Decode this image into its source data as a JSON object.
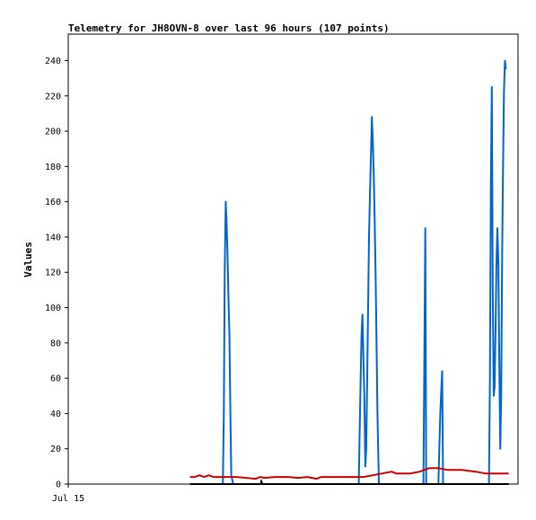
{
  "chart_data": {
    "type": "line",
    "title": "Telemetry for JH8OVN-8 over last 96 hours (107 points)",
    "xlabel": "",
    "ylabel": "Values",
    "xlim": [
      0,
      96
    ],
    "ylim": [
      0,
      255
    ],
    "yticks": [
      0,
      20,
      40,
      60,
      80,
      100,
      120,
      140,
      160,
      180,
      200,
      220,
      240
    ],
    "xticks": [
      {
        "x": 0,
        "label": "Jul 15"
      }
    ],
    "grid": false,
    "legend": "none",
    "series": [
      {
        "color": "#0066cc",
        "points": [
          [
            33.0,
            0
          ],
          [
            33.2,
            40
          ],
          [
            33.4,
            120
          ],
          [
            33.6,
            160
          ],
          [
            33.8,
            148
          ],
          [
            34.0,
            130
          ],
          [
            34.2,
            105
          ],
          [
            34.4,
            85
          ],
          [
            34.6,
            40
          ],
          [
            34.8,
            5
          ],
          [
            35.2,
            0
          ],
          [
            62.0,
            0
          ],
          [
            62.2,
            30
          ],
          [
            62.4,
            60
          ],
          [
            62.6,
            85
          ],
          [
            62.8,
            96
          ],
          [
            63.0,
            70
          ],
          [
            63.2,
            50
          ],
          [
            63.4,
            10
          ],
          [
            63.6,
            20
          ],
          [
            63.8,
            60
          ],
          [
            64.0,
            100
          ],
          [
            64.2,
            140
          ],
          [
            64.4,
            165
          ],
          [
            64.6,
            185
          ],
          [
            64.8,
            208
          ],
          [
            65.0,
            195
          ],
          [
            65.2,
            175
          ],
          [
            65.4,
            150
          ],
          [
            65.6,
            120
          ],
          [
            65.8,
            80
          ],
          [
            66.0,
            40
          ],
          [
            66.3,
            0
          ],
          [
            75.8,
            0
          ],
          [
            76.0,
            70
          ],
          [
            76.2,
            145
          ],
          [
            76.4,
            0
          ],
          [
            79.0,
            0
          ],
          [
            79.2,
            20
          ],
          [
            79.4,
            40
          ],
          [
            79.6,
            52
          ],
          [
            79.8,
            64
          ],
          [
            80.0,
            0
          ],
          [
            89.8,
            0
          ],
          [
            90.0,
            60
          ],
          [
            90.2,
            168
          ],
          [
            90.4,
            225
          ],
          [
            90.6,
            112
          ],
          [
            90.8,
            50
          ],
          [
            91.0,
            55
          ],
          [
            91.2,
            90
          ],
          [
            91.4,
            126
          ],
          [
            91.6,
            145
          ],
          [
            91.8,
            125
          ],
          [
            92.0,
            70
          ],
          [
            92.2,
            20
          ],
          [
            92.4,
            50
          ],
          [
            92.6,
            130
          ],
          [
            92.8,
            180
          ],
          [
            93.0,
            222
          ],
          [
            93.2,
            240
          ],
          [
            93.4,
            235
          ]
        ]
      },
      {
        "color": "#cc0000",
        "points": [
          [
            26.0,
            4
          ],
          [
            27.0,
            4
          ],
          [
            28.0,
            5
          ],
          [
            29.0,
            4
          ],
          [
            30.0,
            5
          ],
          [
            31.0,
            4
          ],
          [
            33.0,
            4
          ],
          [
            36.0,
            4
          ],
          [
            38.0,
            3.5
          ],
          [
            40.0,
            3
          ],
          [
            41.0,
            4
          ],
          [
            42.0,
            3.5
          ],
          [
            44.0,
            4
          ],
          [
            47.0,
            4
          ],
          [
            49.0,
            3.5
          ],
          [
            51.0,
            4
          ],
          [
            52.0,
            3.5
          ],
          [
            53.0,
            3
          ],
          [
            54.0,
            4
          ],
          [
            57.0,
            4
          ],
          [
            60.0,
            4
          ],
          [
            63.0,
            4
          ],
          [
            65.0,
            5
          ],
          [
            67.0,
            6
          ],
          [
            69.0,
            7
          ],
          [
            70.0,
            6
          ],
          [
            73.0,
            6
          ],
          [
            75.0,
            7
          ],
          [
            77.0,
            9
          ],
          [
            79.0,
            9
          ],
          [
            81.0,
            8
          ],
          [
            84.0,
            8
          ],
          [
            87.0,
            7
          ],
          [
            89.0,
            6
          ],
          [
            92.0,
            6
          ],
          [
            94.0,
            6
          ]
        ]
      },
      {
        "color": "#000000",
        "points": [
          [
            26.0,
            0
          ],
          [
            41.2,
            0
          ],
          [
            41.2,
            2
          ],
          [
            41.4,
            0
          ],
          [
            94.0,
            0
          ]
        ]
      }
    ]
  }
}
